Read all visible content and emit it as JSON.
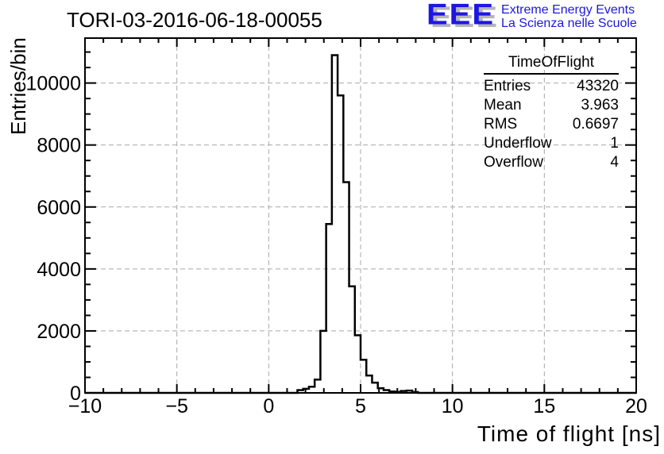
{
  "header": {
    "title": "TORI-03-2016-06-18-00055",
    "logo": {
      "acronym": "EEE",
      "line1": "Extreme Energy Events",
      "line2": "La Scienza nelle Scuole",
      "blue": "#1c17e0",
      "shadow": "#b6b6b6"
    }
  },
  "stats": {
    "title": "TimeOfFlight",
    "rows": [
      {
        "label": "Entries",
        "value": "43320"
      },
      {
        "label": "Mean",
        "value": "3.963"
      },
      {
        "label": "RMS",
        "value": "0.6697"
      },
      {
        "label": "Underflow",
        "value": "1"
      },
      {
        "label": "Overflow",
        "value": "4"
      }
    ]
  },
  "chart_data": {
    "type": "bar",
    "subtype": "step-histogram",
    "title": "TORI-03-2016-06-18-00055",
    "xlabel": "Time of flight [ns]",
    "ylabel": "Entries/bin",
    "xlim": [
      -10,
      20
    ],
    "ylim": [
      0,
      11450
    ],
    "x_major_ticks": [
      -10,
      -5,
      0,
      5,
      10,
      15,
      20
    ],
    "x_tick_labels": [
      "−10",
      "−5",
      "0",
      "5",
      "10",
      "15",
      "20"
    ],
    "x_minor_step": 1,
    "y_major_ticks": [
      0,
      2000,
      4000,
      6000,
      8000,
      10000
    ],
    "y_tick_labels": [
      "0",
      "2000",
      "4000",
      "6000",
      "8000",
      "10000"
    ],
    "y_minor_step": 500,
    "grid": "dashed-at-major-ticks",
    "grid_color": "#a9a9a9",
    "line_color": "#000000",
    "bin_width": 0.3125,
    "first_bin_start": 1.5625,
    "bin_values": [
      90,
      130,
      200,
      430,
      2000,
      5450,
      10900,
      9600,
      6800,
      3440,
      1860,
      1070,
      560,
      330,
      150,
      90,
      45,
      30,
      60,
      75,
      25
    ],
    "peak_value": 10900,
    "legend": "none (stats box top-right)"
  }
}
